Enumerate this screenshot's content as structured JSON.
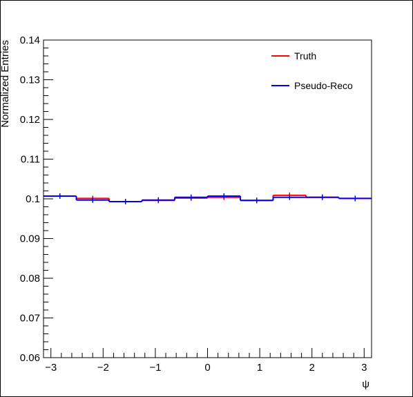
{
  "chart_data": {
    "type": "histogram",
    "title": "",
    "xlabel": "ψ",
    "ylabel": "Normalized Entries",
    "xlim": [
      -3.14159,
      3.14159
    ],
    "ylim": [
      0.06,
      0.14
    ],
    "x_ticks": [
      -3,
      -2,
      -1,
      0,
      1,
      2,
      3
    ],
    "x_tick_labels": [
      "−3",
      "−2",
      "−1",
      "0",
      "1",
      "2",
      "3"
    ],
    "y_ticks": [
      0.06,
      0.07,
      0.08,
      0.09,
      0.1,
      0.11,
      0.12,
      0.13,
      0.14
    ],
    "y_tick_labels": [
      "0.06",
      "0.07",
      "0.08",
      "0.09",
      "0.1",
      "0.11",
      "0.12",
      "0.13",
      "0.14"
    ],
    "grid": false,
    "legend_position": "top-right",
    "bin_edges": [
      -3.14159,
      -2.82743,
      -2.51327,
      -2.19911,
      -1.88496,
      -1.5708,
      -1.25664,
      -0.94248,
      -0.62832,
      -0.31416,
      0.0,
      0.31416,
      0.62832,
      0.94248,
      1.25664,
      1.5708,
      1.88496,
      2.19911,
      2.51327,
      2.82743,
      3.14159
    ],
    "series": [
      {
        "name": "Truth",
        "color": "#ff0000",
        "values": [
          0.1007,
          0.1007,
          0.1001,
          0.1001,
          0.0993,
          0.0993,
          0.0996,
          0.0996,
          0.1002,
          0.1002,
          0.1004,
          0.1004,
          0.0996,
          0.0996,
          0.1009,
          0.1009,
          0.1004,
          0.1004,
          0.1001,
          0.1001
        ]
      },
      {
        "name": "Pseudo-Reco",
        "color": "#0000ff",
        "values": [
          0.1007,
          0.1007,
          0.0997,
          0.0997,
          0.0993,
          0.0993,
          0.0997,
          0.0997,
          0.1004,
          0.1004,
          0.1007,
          0.1007,
          0.0996,
          0.0996,
          0.1004,
          0.1004,
          0.1004,
          0.1004,
          0.1001,
          0.1001
        ]
      }
    ]
  }
}
